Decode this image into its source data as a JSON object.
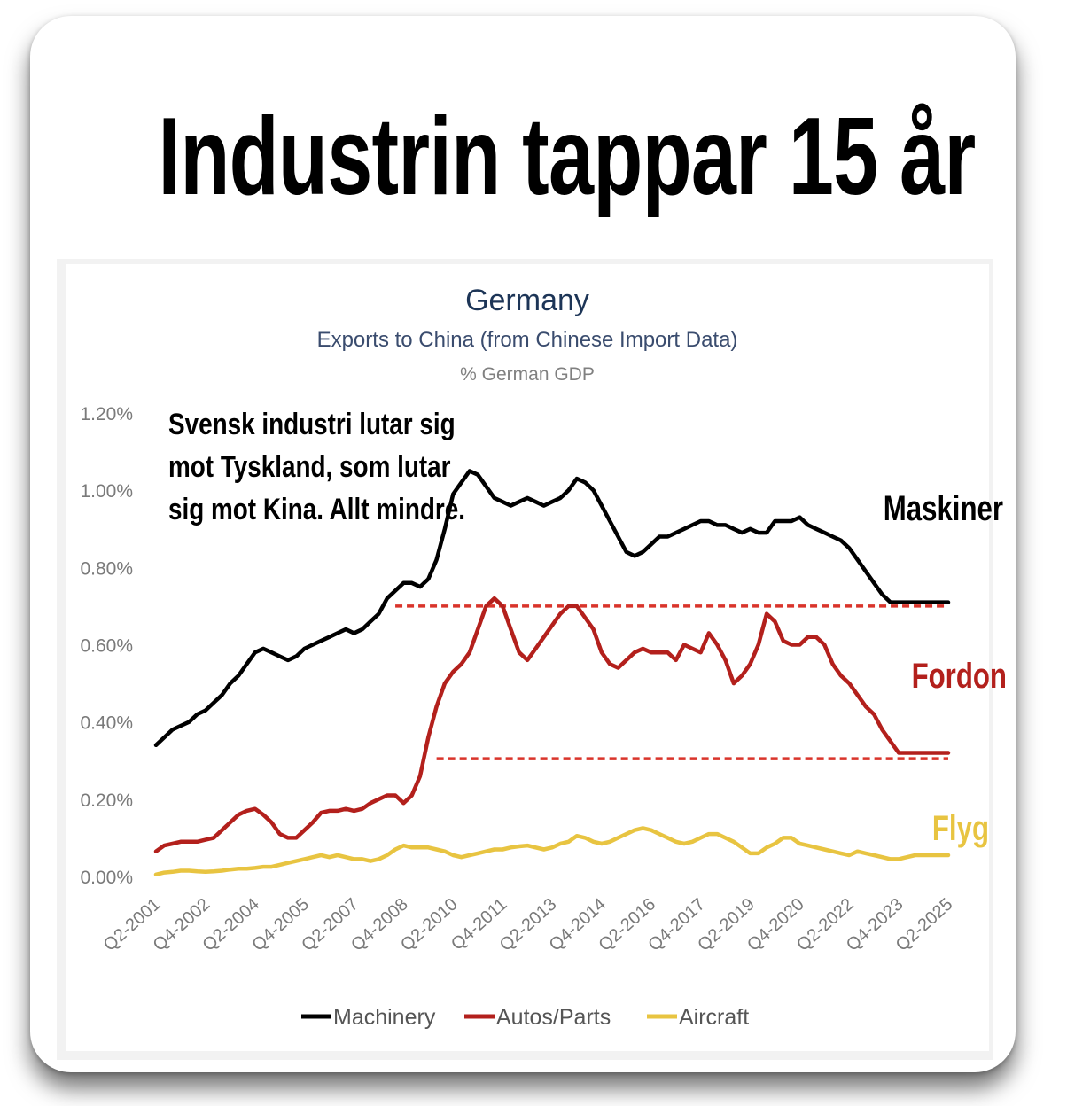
{
  "headline": "Industrin tappar 15 år",
  "chart_data": {
    "type": "line",
    "title": "Germany",
    "subtitle": "Exports to China (from Chinese Import Data)",
    "unit_label": "% German GDP",
    "ylim": [
      0,
      1.2
    ],
    "y_ticks": [
      "0.00%",
      "0.20%",
      "0.40%",
      "0.60%",
      "0.80%",
      "1.00%",
      "1.20%"
    ],
    "x_ticks": [
      "Q2-2001",
      "Q4-2002",
      "Q2-2004",
      "Q4-2005",
      "Q2-2007",
      "Q4-2008",
      "Q2-2010",
      "Q4-2011",
      "Q2-2013",
      "Q4-2014",
      "Q2-2016",
      "Q4-2017",
      "Q2-2019",
      "Q4-2020",
      "Q2-2022",
      "Q4-2023",
      "Q2-2025"
    ],
    "x_range": [
      2001.25,
      2025.25
    ],
    "series": [
      {
        "name": "Machinery",
        "color": "#000000",
        "x": [
          2001.25,
          2001.5,
          2001.75,
          2002.0,
          2002.25,
          2002.5,
          2002.75,
          2003.0,
          2003.25,
          2003.5,
          2003.75,
          2004.0,
          2004.25,
          2004.5,
          2004.75,
          2005.0,
          2005.25,
          2005.5,
          2005.75,
          2006.0,
          2006.25,
          2006.5,
          2006.75,
          2007.0,
          2007.25,
          2007.5,
          2007.75,
          2008.0,
          2008.25,
          2008.5,
          2008.75,
          2009.0,
          2009.25,
          2009.5,
          2009.75,
          2010.0,
          2010.25,
          2010.5,
          2010.75,
          2011.0,
          2011.25,
          2011.5,
          2011.75,
          2012.0,
          2012.25,
          2012.5,
          2012.75,
          2013.0,
          2013.25,
          2013.5,
          2013.75,
          2014.0,
          2014.25,
          2014.5,
          2014.75,
          2015.0,
          2015.25,
          2015.5,
          2015.75,
          2016.0,
          2016.25,
          2016.5,
          2016.75,
          2017.0,
          2017.25,
          2017.5,
          2017.75,
          2018.0,
          2018.25,
          2018.5,
          2018.75,
          2019.0,
          2019.25,
          2019.5,
          2019.75,
          2020.0,
          2020.25,
          2020.5,
          2020.75,
          2021.0,
          2021.25,
          2021.5,
          2021.75,
          2022.0,
          2022.25,
          2022.5,
          2022.75,
          2023.0,
          2023.25,
          2023.5,
          2023.75,
          2024.0,
          2024.25,
          2024.5,
          2024.75,
          2025.0,
          2025.25
        ],
        "values": [
          0.34,
          0.36,
          0.38,
          0.39,
          0.4,
          0.42,
          0.43,
          0.45,
          0.47,
          0.5,
          0.52,
          0.55,
          0.58,
          0.59,
          0.58,
          0.57,
          0.56,
          0.57,
          0.59,
          0.6,
          0.61,
          0.62,
          0.63,
          0.64,
          0.63,
          0.64,
          0.66,
          0.68,
          0.72,
          0.74,
          0.76,
          0.76,
          0.75,
          0.77,
          0.82,
          0.9,
          0.99,
          1.02,
          1.05,
          1.04,
          1.01,
          0.98,
          0.97,
          0.96,
          0.97,
          0.98,
          0.97,
          0.96,
          0.97,
          0.98,
          1.0,
          1.03,
          1.02,
          1.0,
          0.96,
          0.92,
          0.88,
          0.84,
          0.83,
          0.84,
          0.86,
          0.88,
          0.88,
          0.89,
          0.9,
          0.91,
          0.92,
          0.92,
          0.91,
          0.91,
          0.9,
          0.89,
          0.9,
          0.89,
          0.89,
          0.92,
          0.92,
          0.92,
          0.93,
          0.91,
          0.9,
          0.89,
          0.88,
          0.87,
          0.85,
          0.82,
          0.79,
          0.76,
          0.73,
          0.71,
          0.71,
          0.71,
          0.71,
          0.71,
          0.71,
          0.71,
          0.71
        ]
      },
      {
        "name": "Autos/Parts",
        "color": "#b3201c",
        "x": [
          2001.25,
          2001.5,
          2001.75,
          2002.0,
          2002.25,
          2002.5,
          2002.75,
          2003.0,
          2003.25,
          2003.5,
          2003.75,
          2004.0,
          2004.25,
          2004.5,
          2004.75,
          2005.0,
          2005.25,
          2005.5,
          2005.75,
          2006.0,
          2006.25,
          2006.5,
          2006.75,
          2007.0,
          2007.25,
          2007.5,
          2007.75,
          2008.0,
          2008.25,
          2008.5,
          2008.75,
          2009.0,
          2009.25,
          2009.5,
          2009.75,
          2010.0,
          2010.25,
          2010.5,
          2010.75,
          2011.0,
          2011.25,
          2011.5,
          2011.75,
          2012.0,
          2012.25,
          2012.5,
          2012.75,
          2013.0,
          2013.25,
          2013.5,
          2013.75,
          2014.0,
          2014.25,
          2014.5,
          2014.75,
          2015.0,
          2015.25,
          2015.5,
          2015.75,
          2016.0,
          2016.25,
          2016.5,
          2016.75,
          2017.0,
          2017.25,
          2017.5,
          2017.75,
          2018.0,
          2018.25,
          2018.5,
          2018.75,
          2019.0,
          2019.25,
          2019.5,
          2019.75,
          2020.0,
          2020.25,
          2020.5,
          2020.75,
          2021.0,
          2021.25,
          2021.5,
          2021.75,
          2022.0,
          2022.25,
          2022.5,
          2022.75,
          2023.0,
          2023.25,
          2023.5,
          2023.75,
          2024.0,
          2024.25,
          2024.5,
          2024.75,
          2025.0,
          2025.25
        ],
        "values": [
          0.065,
          0.08,
          0.085,
          0.09,
          0.09,
          0.09,
          0.095,
          0.1,
          0.12,
          0.14,
          0.16,
          0.17,
          0.175,
          0.16,
          0.14,
          0.11,
          0.1,
          0.1,
          0.12,
          0.14,
          0.165,
          0.17,
          0.17,
          0.175,
          0.17,
          0.175,
          0.19,
          0.2,
          0.21,
          0.21,
          0.19,
          0.21,
          0.26,
          0.36,
          0.44,
          0.5,
          0.53,
          0.55,
          0.58,
          0.64,
          0.7,
          0.72,
          0.7,
          0.64,
          0.58,
          0.56,
          0.59,
          0.62,
          0.65,
          0.68,
          0.7,
          0.7,
          0.67,
          0.64,
          0.58,
          0.55,
          0.54,
          0.56,
          0.58,
          0.59,
          0.58,
          0.58,
          0.58,
          0.56,
          0.6,
          0.59,
          0.58,
          0.63,
          0.6,
          0.56,
          0.5,
          0.52,
          0.55,
          0.6,
          0.68,
          0.66,
          0.61,
          0.6,
          0.6,
          0.62,
          0.62,
          0.6,
          0.55,
          0.52,
          0.5,
          0.47,
          0.44,
          0.42,
          0.38,
          0.35,
          0.32,
          0.32,
          0.32,
          0.32,
          0.32,
          0.32,
          0.32
        ]
      },
      {
        "name": "Aircraft",
        "color": "#e8c441",
        "x": [
          2001.25,
          2001.5,
          2001.75,
          2002.0,
          2002.25,
          2002.5,
          2002.75,
          2003.0,
          2003.25,
          2003.5,
          2003.75,
          2004.0,
          2004.25,
          2004.5,
          2004.75,
          2005.0,
          2005.25,
          2005.5,
          2005.75,
          2006.0,
          2006.25,
          2006.5,
          2006.75,
          2007.0,
          2007.25,
          2007.5,
          2007.75,
          2008.0,
          2008.25,
          2008.5,
          2008.75,
          2009.0,
          2009.25,
          2009.5,
          2009.75,
          2010.0,
          2010.25,
          2010.5,
          2010.75,
          2011.0,
          2011.25,
          2011.5,
          2011.75,
          2012.0,
          2012.25,
          2012.5,
          2012.75,
          2013.0,
          2013.25,
          2013.5,
          2013.75,
          2014.0,
          2014.25,
          2014.5,
          2014.75,
          2015.0,
          2015.25,
          2015.5,
          2015.75,
          2016.0,
          2016.25,
          2016.5,
          2016.75,
          2017.0,
          2017.25,
          2017.5,
          2017.75,
          2018.0,
          2018.25,
          2018.5,
          2018.75,
          2019.0,
          2019.25,
          2019.5,
          2019.75,
          2020.0,
          2020.25,
          2020.5,
          2020.75,
          2021.0,
          2021.25,
          2021.5,
          2021.75,
          2022.0,
          2022.25,
          2022.5,
          2022.75,
          2023.0,
          2023.25,
          2023.5,
          2023.75,
          2024.0,
          2024.25,
          2024.5,
          2024.75,
          2025.0,
          2025.25
        ],
        "values": [
          0.005,
          0.01,
          0.012,
          0.015,
          0.015,
          0.013,
          0.012,
          0.013,
          0.015,
          0.018,
          0.02,
          0.02,
          0.022,
          0.025,
          0.025,
          0.03,
          0.035,
          0.04,
          0.045,
          0.05,
          0.055,
          0.05,
          0.055,
          0.05,
          0.045,
          0.045,
          0.04,
          0.045,
          0.055,
          0.07,
          0.08,
          0.075,
          0.075,
          0.075,
          0.07,
          0.065,
          0.055,
          0.05,
          0.055,
          0.06,
          0.065,
          0.07,
          0.07,
          0.075,
          0.078,
          0.08,
          0.075,
          0.07,
          0.075,
          0.085,
          0.09,
          0.105,
          0.1,
          0.09,
          0.085,
          0.09,
          0.1,
          0.11,
          0.12,
          0.125,
          0.12,
          0.11,
          0.1,
          0.09,
          0.085,
          0.09,
          0.1,
          0.11,
          0.11,
          0.1,
          0.09,
          0.075,
          0.06,
          0.06,
          0.075,
          0.085,
          0.1,
          0.1,
          0.085,
          0.08,
          0.075,
          0.07,
          0.065,
          0.06,
          0.055,
          0.065,
          0.06,
          0.055,
          0.05,
          0.045,
          0.045,
          0.05,
          0.055,
          0.055,
          0.055,
          0.055,
          0.055
        ]
      }
    ],
    "reference_lines": [
      {
        "y": 0.7,
        "x_from": 2008.5,
        "x_to": 2025.25,
        "color": "#d9342b"
      },
      {
        "y": 0.305,
        "x_from": 2009.75,
        "x_to": 2025.25,
        "color": "#d9342b"
      }
    ],
    "annotations": [
      {
        "text": "Svensk industri lutar sig",
        "color": "#000000"
      },
      {
        "text": "mot Tyskland, som lutar",
        "color": "#000000"
      },
      {
        "text": "sig mot Kina. Allt mindre.",
        "color": "#000000"
      }
    ],
    "series_labels": [
      {
        "text": "Maskiner",
        "color": "#000000"
      },
      {
        "text": "Fordon",
        "color": "#b3201c"
      },
      {
        "text": "Flyg",
        "color": "#e8c441"
      }
    ],
    "legend": [
      "Machinery",
      "Autos/Parts",
      "Aircraft"
    ],
    "legend_position": "bottom"
  }
}
